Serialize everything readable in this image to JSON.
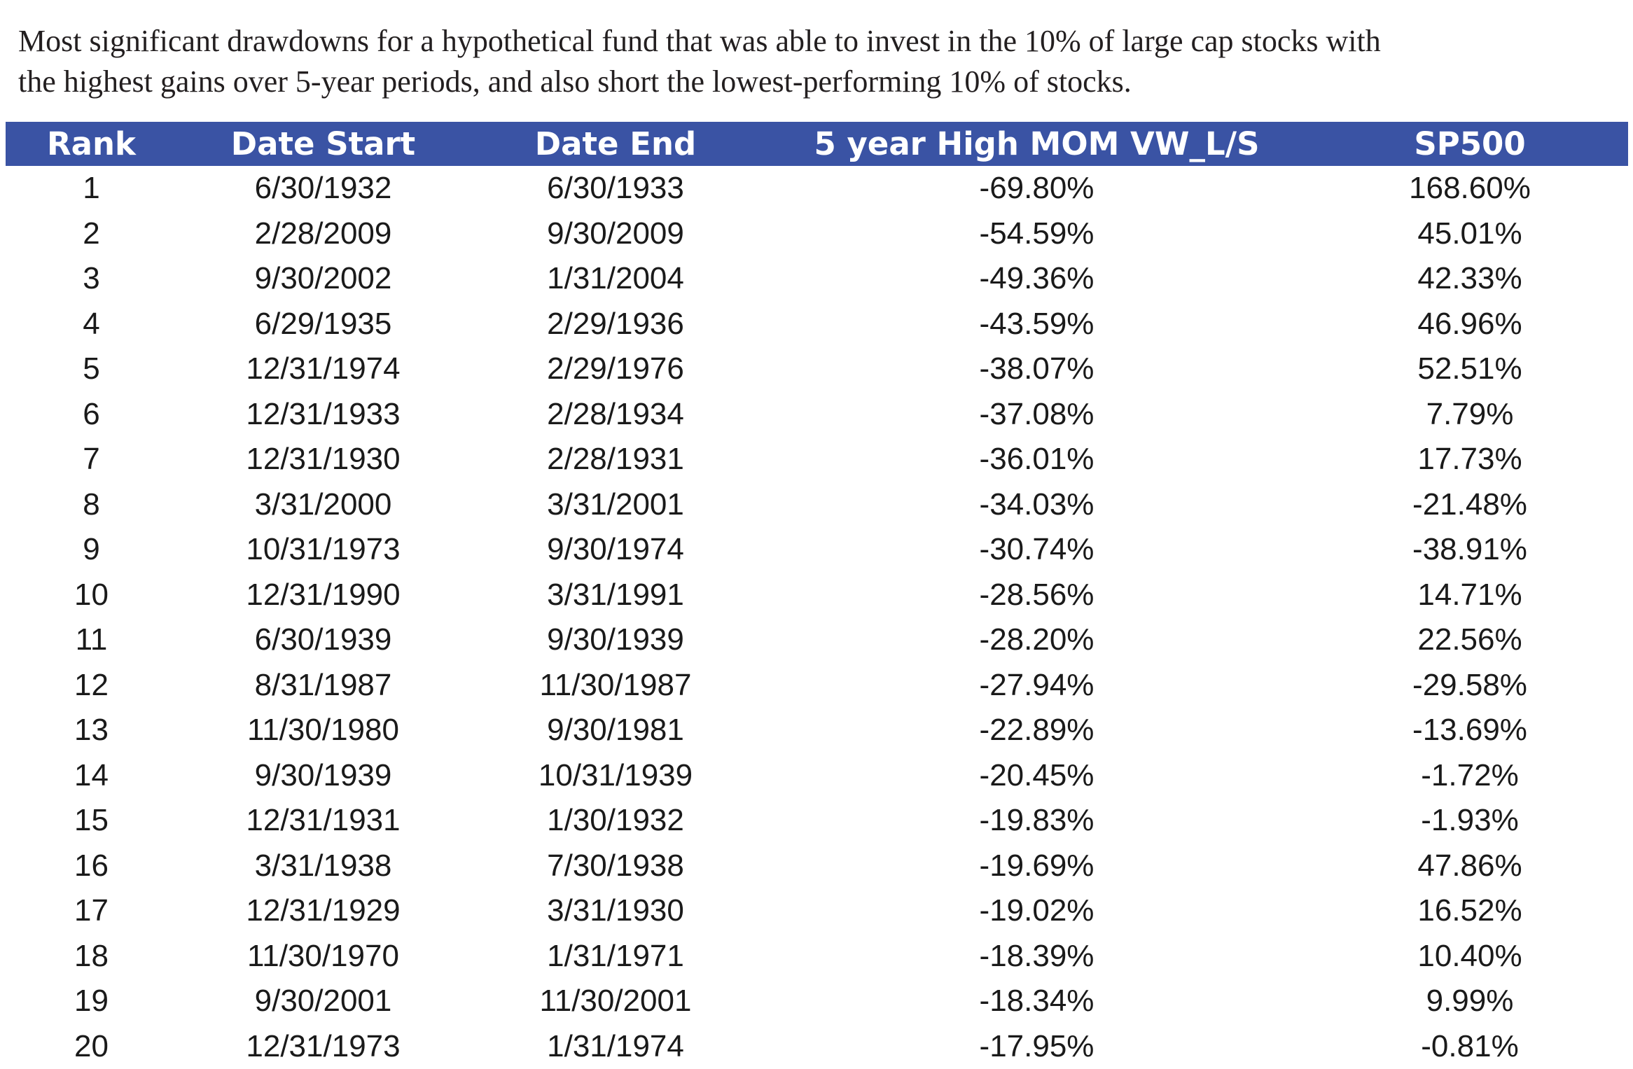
{
  "caption": {
    "line1": "Most significant drawdowns for a hypothetical fund that was able to invest in the 10% of large cap stocks with",
    "line2": "the highest gains over 5-year periods, and also short the lowest-performing 10% of stocks."
  },
  "table": {
    "header_color": "#3a53a4",
    "columns": [
      "Rank",
      "Date Start",
      "Date End",
      "5 year High MOM VW_L/S",
      "SP500"
    ],
    "rows": [
      [
        "1",
        "6/30/1932",
        "6/30/1933",
        "-69.80%",
        "168.60%"
      ],
      [
        "2",
        "2/28/2009",
        "9/30/2009",
        "-54.59%",
        "45.01%"
      ],
      [
        "3",
        "9/30/2002",
        "1/31/2004",
        "-49.36%",
        "42.33%"
      ],
      [
        "4",
        "6/29/1935",
        "2/29/1936",
        "-43.59%",
        "46.96%"
      ],
      [
        "5",
        "12/31/1974",
        "2/29/1976",
        "-38.07%",
        "52.51%"
      ],
      [
        "6",
        "12/31/1933",
        "2/28/1934",
        "-37.08%",
        "7.79%"
      ],
      [
        "7",
        "12/31/1930",
        "2/28/1931",
        "-36.01%",
        "17.73%"
      ],
      [
        "8",
        "3/31/2000",
        "3/31/2001",
        "-34.03%",
        "-21.48%"
      ],
      [
        "9",
        "10/31/1973",
        "9/30/1974",
        "-30.74%",
        "-38.91%"
      ],
      [
        "10",
        "12/31/1990",
        "3/31/1991",
        "-28.56%",
        "14.71%"
      ],
      [
        "11",
        "6/30/1939",
        "9/30/1939",
        "-28.20%",
        "22.56%"
      ],
      [
        "12",
        "8/31/1987",
        "11/30/1987",
        "-27.94%",
        "-29.58%"
      ],
      [
        "13",
        "11/30/1980",
        "9/30/1981",
        "-22.89%",
        "-13.69%"
      ],
      [
        "14",
        "9/30/1939",
        "10/31/1939",
        "-20.45%",
        "-1.72%"
      ],
      [
        "15",
        "12/31/1931",
        "1/30/1932",
        "-19.83%",
        "-1.93%"
      ],
      [
        "16",
        "3/31/1938",
        "7/30/1938",
        "-19.69%",
        "47.86%"
      ],
      [
        "17",
        "12/31/1929",
        "3/31/1930",
        "-19.02%",
        "16.52%"
      ],
      [
        "18",
        "11/30/1970",
        "1/31/1971",
        "-18.39%",
        "10.40%"
      ],
      [
        "19",
        "9/30/2001",
        "11/30/2001",
        "-18.34%",
        "9.99%"
      ],
      [
        "20",
        "12/31/1973",
        "1/31/1974",
        "-17.95%",
        "-0.81%"
      ]
    ]
  }
}
